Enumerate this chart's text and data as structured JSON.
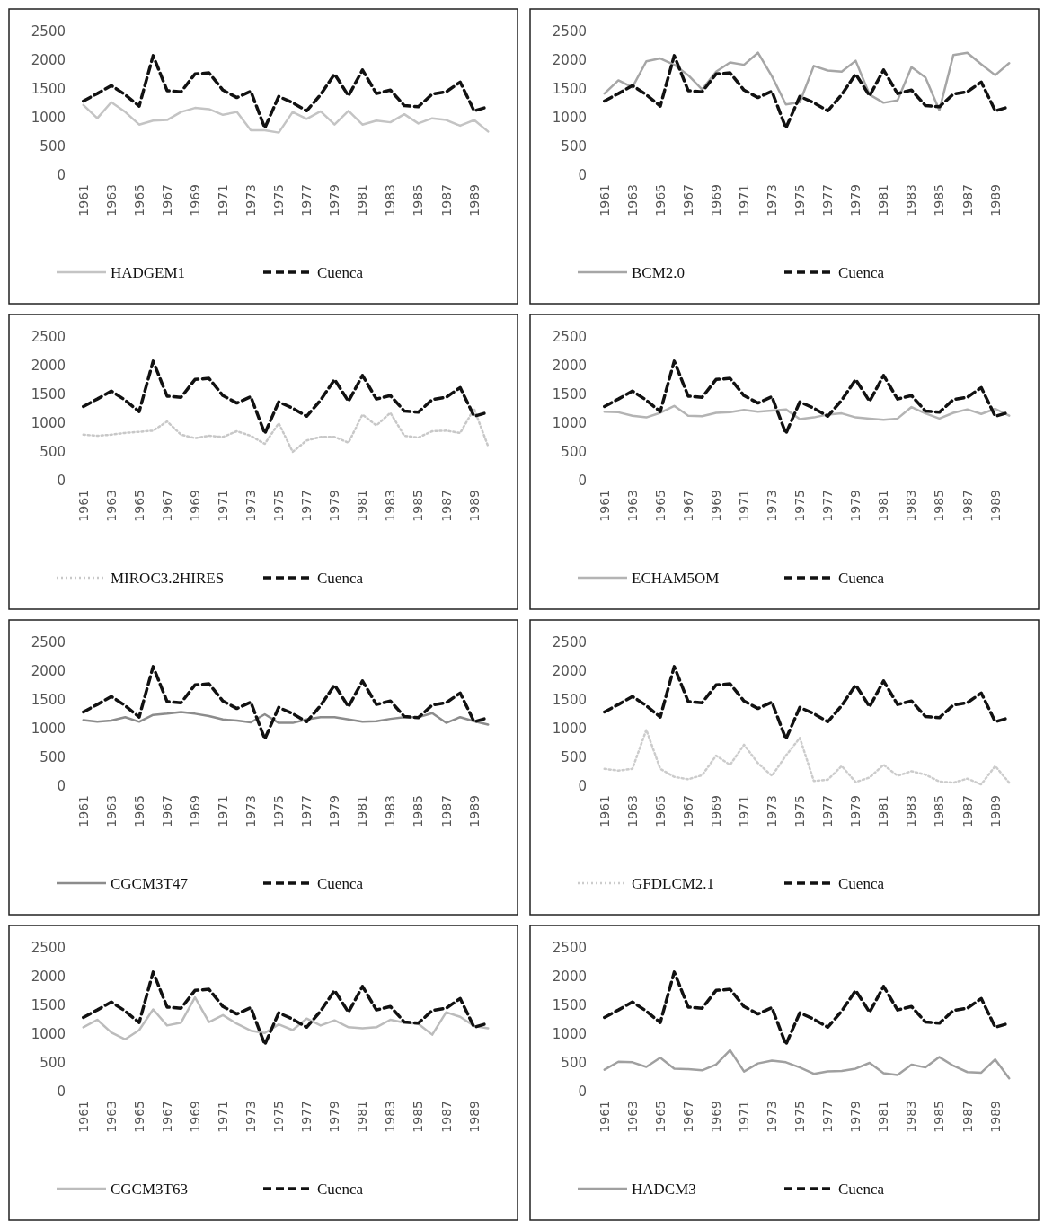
{
  "chart_data": [
    {
      "type": "line",
      "categories": [
        "1961",
        null,
        "1963",
        null,
        "1965",
        null,
        "1967",
        null,
        "1969",
        null,
        "1971",
        null,
        "1973",
        null,
        "1975",
        null,
        "1977",
        null,
        "1979",
        null,
        "1981",
        null,
        "1983",
        null,
        "1985",
        null,
        "1987",
        null,
        "1989",
        null
      ],
      "ylim": [
        0,
        2500
      ],
      "yticks": [
        0,
        500,
        1000,
        1500,
        2000,
        2500
      ],
      "legend": "bottom",
      "grid": false,
      "series": [
        {
          "name": "HADGEM1",
          "color": "#c4c4c4",
          "line_style": "solid",
          "values": [
            1220,
            990,
            1270,
            1100,
            880,
            950,
            960,
            1100,
            1170,
            1150,
            1050,
            1100,
            780,
            780,
            740,
            1100,
            980,
            1110,
            880,
            1120,
            880,
            950,
            920,
            1060,
            900,
            990,
            960,
            860,
            960,
            760
          ]
        },
        {
          "name": "Cuenca",
          "color": "#111111",
          "line_style": "dashed",
          "values": [
            1290,
            1420,
            1560,
            1400,
            1200,
            2080,
            1470,
            1450,
            1760,
            1780,
            1480,
            1350,
            1460,
            820,
            1370,
            1260,
            1120,
            1400,
            1760,
            1380,
            1830,
            1420,
            1480,
            1210,
            1190,
            1410,
            1450,
            1620,
            1120,
            1190
          ]
        }
      ]
    },
    {
      "type": "line",
      "categories": [
        "1961",
        null,
        "1963",
        null,
        "1965",
        null,
        "1967",
        null,
        "1969",
        null,
        "1971",
        null,
        "1973",
        null,
        "1975",
        null,
        "1977",
        null,
        "1979",
        null,
        "1981",
        null,
        "1983",
        null,
        "1985",
        null,
        "1987",
        null,
        "1989",
        null
      ],
      "ylim": [
        0,
        2500
      ],
      "yticks": [
        0,
        500,
        1000,
        1500,
        2000,
        2500
      ],
      "legend": "bottom",
      "grid": false,
      "series": [
        {
          "name": "BCM2.0",
          "color": "#a6a6a6",
          "line_style": "solid",
          "values": [
            1420,
            1650,
            1530,
            1980,
            2030,
            1920,
            1740,
            1490,
            1800,
            1960,
            1920,
            2130,
            1720,
            1230,
            1270,
            1900,
            1820,
            1800,
            1990,
            1400,
            1260,
            1300,
            1880,
            1700,
            1130,
            2090,
            2130,
            1930,
            1740,
            1950
          ]
        },
        {
          "name": "Cuenca",
          "color": "#111111",
          "line_style": "dashed",
          "values": [
            1290,
            1420,
            1560,
            1400,
            1200,
            2080,
            1470,
            1450,
            1760,
            1780,
            1480,
            1350,
            1460,
            820,
            1370,
            1260,
            1120,
            1400,
            1760,
            1380,
            1830,
            1420,
            1480,
            1210,
            1190,
            1410,
            1450,
            1620,
            1120,
            1190
          ]
        }
      ]
    },
    {
      "type": "line",
      "categories": [
        "1961",
        null,
        "1963",
        null,
        "1965",
        null,
        "1967",
        null,
        "1969",
        null,
        "1971",
        null,
        "1973",
        null,
        "1975",
        null,
        "1977",
        null,
        "1979",
        null,
        "1981",
        null,
        "1983",
        null,
        "1985",
        null,
        "1987",
        null,
        "1989",
        null
      ],
      "ylim": [
        0,
        2500
      ],
      "yticks": [
        0,
        500,
        1000,
        1500,
        2000,
        2500
      ],
      "legend": "bottom",
      "grid": false,
      "series": [
        {
          "name": "MIROC3.2HIRES",
          "color": "#c8c8c8",
          "line_style": "dotted",
          "values": [
            800,
            780,
            800,
            830,
            850,
            870,
            1030,
            800,
            740,
            780,
            760,
            860,
            780,
            640,
            1000,
            500,
            700,
            760,
            760,
            660,
            1150,
            960,
            1180,
            780,
            750,
            860,
            870,
            830,
            1250,
            600
          ]
        },
        {
          "name": "Cuenca",
          "color": "#111111",
          "line_style": "dashed",
          "values": [
            1290,
            1420,
            1560,
            1400,
            1200,
            2080,
            1470,
            1450,
            1760,
            1780,
            1480,
            1350,
            1460,
            820,
            1370,
            1260,
            1120,
            1400,
            1760,
            1380,
            1830,
            1420,
            1480,
            1210,
            1190,
            1410,
            1450,
            1620,
            1120,
            1190
          ]
        }
      ]
    },
    {
      "type": "line",
      "categories": [
        "1961",
        null,
        "1963",
        null,
        "1965",
        null,
        "1967",
        null,
        "1969",
        null,
        "1971",
        null,
        "1973",
        null,
        "1975",
        null,
        "1977",
        null,
        "1979",
        null,
        "1981",
        null,
        "1983",
        null,
        "1985",
        null,
        "1987",
        null,
        "1989",
        null
      ],
      "ylim": [
        0,
        2500
      ],
      "yticks": [
        0,
        500,
        1000,
        1500,
        2000,
        2500
      ],
      "legend": "bottom",
      "grid": false,
      "series": [
        {
          "name": "ECHAM5OM",
          "color": "#b4b4b4",
          "line_style": "solid",
          "values": [
            1200,
            1190,
            1130,
            1100,
            1180,
            1300,
            1130,
            1120,
            1180,
            1190,
            1230,
            1200,
            1220,
            1240,
            1070,
            1100,
            1150,
            1170,
            1100,
            1080,
            1060,
            1080,
            1280,
            1170,
            1080,
            1180,
            1240,
            1160,
            1250,
            1130
          ]
        },
        {
          "name": "Cuenca",
          "color": "#111111",
          "line_style": "dashed",
          "values": [
            1290,
            1420,
            1560,
            1400,
            1200,
            2080,
            1470,
            1450,
            1760,
            1780,
            1480,
            1350,
            1460,
            820,
            1370,
            1260,
            1120,
            1400,
            1760,
            1380,
            1830,
            1420,
            1480,
            1210,
            1190,
            1410,
            1450,
            1620,
            1120,
            1190
          ]
        }
      ]
    },
    {
      "type": "line",
      "categories": [
        "1961",
        null,
        "1963",
        null,
        "1965",
        null,
        "1967",
        null,
        "1969",
        null,
        "1971",
        null,
        "1973",
        null,
        "1975",
        null,
        "1977",
        null,
        "1979",
        null,
        "1981",
        null,
        "1983",
        null,
        "1985",
        null,
        "1987",
        null,
        "1989",
        null
      ],
      "ylim": [
        0,
        2500
      ],
      "yticks": [
        0,
        500,
        1000,
        1500,
        2000,
        2500
      ],
      "legend": "bottom",
      "grid": false,
      "series": [
        {
          "name": "CGCM3T47",
          "color": "#8c8c8c",
          "line_style": "solid",
          "values": [
            1150,
            1120,
            1140,
            1200,
            1120,
            1240,
            1260,
            1290,
            1260,
            1220,
            1160,
            1140,
            1110,
            1250,
            1100,
            1100,
            1160,
            1200,
            1200,
            1160,
            1120,
            1130,
            1170,
            1200,
            1200,
            1270,
            1100,
            1200,
            1130,
            1070
          ]
        },
        {
          "name": "Cuenca",
          "color": "#111111",
          "line_style": "dashed",
          "values": [
            1290,
            1420,
            1560,
            1400,
            1200,
            2080,
            1470,
            1450,
            1760,
            1780,
            1480,
            1350,
            1460,
            820,
            1370,
            1260,
            1120,
            1400,
            1760,
            1380,
            1830,
            1420,
            1480,
            1210,
            1190,
            1410,
            1450,
            1620,
            1120,
            1190
          ]
        }
      ]
    },
    {
      "type": "line",
      "categories": [
        "1961",
        null,
        "1963",
        null,
        "1965",
        null,
        "1967",
        null,
        "1969",
        null,
        "1971",
        null,
        "1973",
        null,
        "1975",
        null,
        "1977",
        null,
        "1979",
        null,
        "1981",
        null,
        "1983",
        null,
        "1985",
        null,
        "1987",
        null,
        "1989",
        null
      ],
      "ylim": [
        0,
        2500
      ],
      "yticks": [
        0,
        500,
        1000,
        1500,
        2000,
        2500
      ],
      "legend": "bottom",
      "grid": false,
      "series": [
        {
          "name": "GFDLCM2.1",
          "color": "#cccccc",
          "line_style": "dotted",
          "values": [
            300,
            270,
            300,
            980,
            300,
            160,
            120,
            190,
            530,
            370,
            720,
            400,
            180,
            530,
            840,
            90,
            110,
            350,
            70,
            150,
            370,
            180,
            260,
            200,
            80,
            60,
            130,
            30,
            350,
            60
          ]
        },
        {
          "name": "Cuenca",
          "color": "#111111",
          "line_style": "dashed",
          "values": [
            1290,
            1420,
            1560,
            1400,
            1200,
            2080,
            1470,
            1450,
            1760,
            1780,
            1480,
            1350,
            1460,
            820,
            1370,
            1260,
            1120,
            1400,
            1760,
            1380,
            1830,
            1420,
            1480,
            1210,
            1190,
            1410,
            1450,
            1620,
            1120,
            1190
          ]
        }
      ]
    },
    {
      "type": "line",
      "categories": [
        "1961",
        null,
        "1963",
        null,
        "1965",
        null,
        "1967",
        null,
        "1969",
        null,
        "1971",
        null,
        "1973",
        null,
        "1975",
        null,
        "1977",
        null,
        "1979",
        null,
        "1981",
        null,
        "1983",
        null,
        "1985",
        null,
        "1987",
        null,
        "1989",
        null
      ],
      "ylim": [
        0,
        2500
      ],
      "yticks": [
        0,
        500,
        1000,
        1500,
        2000,
        2500
      ],
      "legend": "bottom",
      "grid": false,
      "series": [
        {
          "name": "CGCM3T63",
          "color": "#bcbcbc",
          "line_style": "solid",
          "values": [
            1120,
            1250,
            1030,
            910,
            1070,
            1430,
            1150,
            1200,
            1640,
            1210,
            1330,
            1180,
            1060,
            1020,
            1170,
            1070,
            1270,
            1150,
            1240,
            1120,
            1100,
            1120,
            1250,
            1200,
            1180,
            990,
            1380,
            1300,
            1140,
            1100
          ]
        },
        {
          "name": "Cuenca",
          "color": "#111111",
          "line_style": "dashed",
          "values": [
            1290,
            1420,
            1560,
            1400,
            1200,
            2080,
            1470,
            1450,
            1760,
            1780,
            1480,
            1350,
            1460,
            820,
            1370,
            1260,
            1120,
            1400,
            1760,
            1380,
            1830,
            1420,
            1480,
            1210,
            1190,
            1410,
            1450,
            1620,
            1120,
            1190
          ]
        }
      ]
    },
    {
      "type": "line",
      "categories": [
        "1961",
        null,
        "1963",
        null,
        "1965",
        null,
        "1967",
        null,
        "1969",
        null,
        "1971",
        null,
        "1973",
        null,
        "1975",
        null,
        "1977",
        null,
        "1979",
        null,
        "1981",
        null,
        "1983",
        null,
        "1985",
        null,
        "1987",
        null,
        "1989",
        null
      ],
      "ylim": [
        0,
        2500
      ],
      "yticks": [
        0,
        500,
        1000,
        1500,
        2000,
        2500
      ],
      "legend": "bottom",
      "grid": false,
      "series": [
        {
          "name": "HADCM3",
          "color": "#a0a0a0",
          "line_style": "solid",
          "values": [
            380,
            520,
            510,
            430,
            590,
            400,
            390,
            370,
            470,
            720,
            350,
            490,
            540,
            510,
            420,
            310,
            350,
            360,
            400,
            500,
            320,
            290,
            470,
            420,
            600,
            450,
            340,
            330,
            560,
            230
          ]
        },
        {
          "name": "Cuenca",
          "color": "#111111",
          "line_style": "dashed",
          "values": [
            1290,
            1420,
            1560,
            1400,
            1200,
            2080,
            1470,
            1450,
            1760,
            1780,
            1480,
            1350,
            1460,
            820,
            1370,
            1260,
            1120,
            1400,
            1760,
            1380,
            1830,
            1420,
            1480,
            1210,
            1190,
            1410,
            1450,
            1620,
            1120,
            1190
          ]
        }
      ]
    }
  ]
}
